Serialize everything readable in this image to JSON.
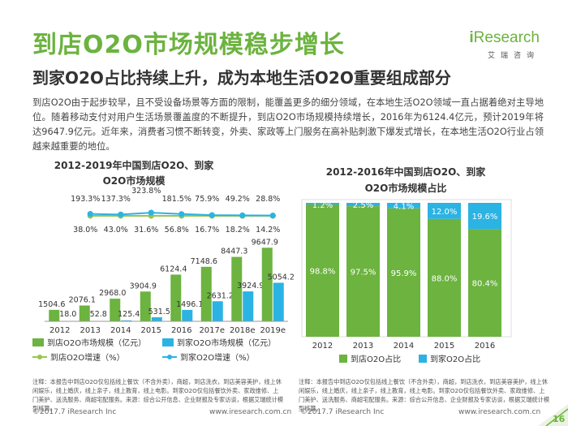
{
  "header": {
    "title": "到店O2O市场规模稳步增长",
    "subtitle": "到家O2O占比持续上升，成为本地生活O2O重要组成部分",
    "logo_main_i": "i",
    "logo_main_rest": "Research",
    "logo_sub": "艾瑞咨询"
  },
  "intro": "到店O2O由于起步较早，且不受设备场景等方面的限制，能覆盖更多的细分领域，在本地生活O2O领域一直占据着绝对主导地位。随着移动支付对用户生活场景覆盖度的不断提升，到店O2O市场规模持续增长，2016年为6124.4亿元，预计2019年将达9647.9亿元。近年来，消费者习惯不断转变，外卖、家政等上门服务在高补贴刺激下爆发式增长，在本地生活O2O行业占领越来越重要的地位。",
  "chart_data": [
    {
      "type": "bar",
      "title": "2012-2019年中国到店O2O、到家O2O市场规模",
      "title_line1": "2012-2019年中国到店O2O、到家",
      "title_line2": "O2O市场规模",
      "categories": [
        "2012",
        "2013",
        "2014",
        "2015",
        "2016",
        "2017e",
        "2018e",
        "2019e"
      ],
      "series": [
        {
          "name": "到店O2O市场规模（亿元）",
          "color": "#6cb33f",
          "values": [
            1504.6,
            2076.1,
            2968.0,
            3904.9,
            6124.4,
            7148.6,
            8447.3,
            9647.9
          ],
          "labels": [
            "1504.6",
            "2076.1",
            "2968.0",
            "3904.9",
            "6124.4",
            "7148.6",
            "8447.3",
            "9647.9"
          ]
        },
        {
          "name": "到家O2O市场规模（亿元）",
          "color": "#2bb3e3",
          "values": [
            18.0,
            52.8,
            125.4,
            531.5,
            1496.1,
            2631.2,
            3924.9,
            5054.2
          ],
          "labels": [
            "18.0",
            "52.8",
            "125.4",
            "531.5",
            "1496.1",
            "2631.2",
            "3924.9",
            "5054.2"
          ]
        }
      ],
      "growth": [
        {
          "name": "到店O2O增速（%）",
          "color": "#9ac54f",
          "values": [
            38.0,
            43.0,
            31.6,
            56.8,
            16.7,
            18.2,
            14.2
          ],
          "labels": [
            "38.0%",
            "43.0%",
            "31.6%",
            "56.8%",
            "16.7%",
            "18.2%",
            "14.2%"
          ]
        },
        {
          "name": "到家O2O增速（%）",
          "color": "#2bb3e3",
          "values": [
            193.3,
            137.3,
            323.8,
            181.5,
            75.9,
            49.2,
            28.8
          ],
          "labels": [
            "193.3%",
            "137.3%",
            "323.8%",
            "181.5%",
            "75.9%",
            "49.2%",
            "28.8%"
          ]
        }
      ],
      "ylim": [
        0,
        10000
      ],
      "legend_position": "bottom"
    },
    {
      "type": "bar",
      "stacked": true,
      "title": "2012-2016年中国到店O2O、到家O2O市场规模占比",
      "title_line1": "2012-2016年中国到店O2O、到家",
      "title_line2": "O2O市场规模占比",
      "categories": [
        "2012",
        "2013",
        "2014",
        "2015",
        "2016"
      ],
      "series": [
        {
          "name": "到店O2O占比",
          "color": "#6cb33f",
          "values": [
            98.8,
            97.5,
            95.9,
            88.0,
            80.4
          ],
          "labels": [
            "98.8%",
            "97.5%",
            "95.9%",
            "88.0%",
            "80.4%"
          ]
        },
        {
          "name": "到家O2O占比",
          "color": "#2bb3e3",
          "values": [
            1.2,
            2.5,
            4.1,
            12.0,
            19.6
          ],
          "labels": [
            "1.2%",
            "2.5%",
            "4.1%",
            "12.0%",
            "19.6%"
          ]
        }
      ],
      "ylim": [
        0,
        100
      ],
      "legend_position": "bottom"
    }
  ],
  "notes": {
    "left": "注释：本报告中到店O2O仅包括线上餐饮（不含外卖），商超，到店洗衣，到店美容美护，线上休闲娱乐，线上婚庆，线上亲子，线上教育，线上电影。到家O2O仅包括餐饮外卖、家政维修、上门美护、送洗服务、商超宅配服务。来源：综合公开信息、企业财报及专家访谈，根据艾瑞统计模型核算。",
    "right": "注释：本报告中到店O2O仅包括线上餐饮（不含外卖），商超，到店洗衣，到店美容美护，线上休闲娱乐，线上婚庆，线上亲子，线上教育，线上电影。到家O2O仅包括餐饮外卖、家政维修、上门美护、送洗服务、商超宅配服务。来源：综合公开信息、企业财报及专家访谈，根据艾瑞统计模型核算。"
  },
  "footer": {
    "copyright": "©2017.7 iResearch Inc",
    "site": "www.iresearch.com.cn",
    "page": "16"
  }
}
